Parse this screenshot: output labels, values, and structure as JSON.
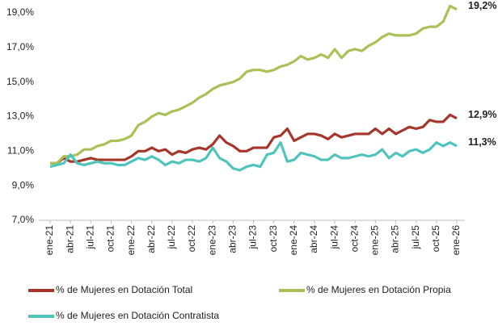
{
  "chart_data": {
    "type": "line",
    "categories": [
      "ene-21",
      null,
      null,
      "abr-21",
      null,
      null,
      "jul-21",
      null,
      null,
      "oct-21",
      null,
      null,
      "ene-22",
      null,
      null,
      "abr-22",
      null,
      null,
      "jul-22",
      null,
      null,
      "oct-22",
      null,
      null,
      "ene-23",
      null,
      null,
      "abr-23",
      null,
      null,
      "jul-23",
      null,
      null,
      "oct-23",
      null,
      null,
      "ene-24",
      null,
      null,
      "abr-24",
      null,
      null,
      "jul-24",
      null,
      null,
      "oct-24",
      null,
      null,
      "ene-25",
      null,
      null,
      "abr-25",
      null,
      null,
      "jul-25",
      null,
      null,
      "oct-25",
      null,
      null,
      "ene-26"
    ],
    "series": [
      {
        "name": "% de Mujeres en Dotación Total",
        "color": "#a5372a",
        "values": [
          10.3,
          10.3,
          10.6,
          10.4,
          10.4,
          10.5,
          10.6,
          10.5,
          10.5,
          10.5,
          10.5,
          10.5,
          10.7,
          11.0,
          11.0,
          11.2,
          11.0,
          11.1,
          10.8,
          11.0,
          10.9,
          11.1,
          11.2,
          11.1,
          11.4,
          11.9,
          11.5,
          11.3,
          11.0,
          11.0,
          11.2,
          11.2,
          11.2,
          11.8,
          11.9,
          12.3,
          11.6,
          11.8,
          12.0,
          12.0,
          11.9,
          11.7,
          12.0,
          11.8,
          11.9,
          12.0,
          12.0,
          12.0,
          12.3,
          12.0,
          12.3,
          12.0,
          12.2,
          12.4,
          12.3,
          12.4,
          12.8,
          12.7,
          12.7,
          13.1,
          12.9
        ],
        "value_labels": [
          null,
          null,
          null,
          null,
          null,
          null,
          null,
          null,
          null,
          null,
          null,
          null,
          null,
          null,
          null,
          null,
          null,
          null,
          null,
          null,
          null,
          null,
          null,
          null,
          null,
          null,
          null,
          null,
          null,
          null,
          null,
          null,
          null,
          null,
          null,
          null,
          null,
          null,
          null,
          null,
          null,
          null,
          null,
          null,
          null,
          null,
          null,
          null,
          null,
          null,
          null,
          null,
          null,
          null,
          null,
          null,
          null,
          null,
          null,
          null,
          "12,9%"
        ]
      },
      {
        "name": "% de Mujeres en Dotación Propia",
        "color": "#a9c157",
        "values": [
          10.3,
          10.3,
          10.7,
          10.7,
          10.8,
          11.1,
          11.1,
          11.3,
          11.4,
          11.6,
          11.6,
          11.7,
          11.9,
          12.5,
          12.7,
          13.0,
          13.2,
          13.1,
          13.3,
          13.4,
          13.6,
          13.8,
          14.1,
          14.3,
          14.6,
          14.8,
          14.9,
          15.0,
          15.2,
          15.6,
          15.7,
          15.7,
          15.6,
          15.7,
          15.9,
          16.0,
          16.2,
          16.5,
          16.3,
          16.4,
          16.6,
          16.4,
          16.9,
          16.4,
          16.8,
          16.9,
          16.8,
          17.1,
          17.3,
          17.6,
          17.8,
          17.7,
          17.7,
          17.7,
          17.8,
          18.1,
          18.2,
          18.2,
          18.5,
          19.4,
          19.2
        ],
        "value_labels": [
          null,
          null,
          null,
          null,
          null,
          null,
          null,
          null,
          null,
          null,
          null,
          null,
          null,
          null,
          null,
          null,
          null,
          null,
          null,
          null,
          null,
          null,
          null,
          null,
          null,
          null,
          null,
          null,
          null,
          null,
          null,
          null,
          null,
          null,
          null,
          null,
          null,
          null,
          null,
          null,
          null,
          null,
          null,
          null,
          null,
          null,
          null,
          null,
          null,
          null,
          null,
          null,
          null,
          null,
          null,
          null,
          null,
          null,
          null,
          null,
          "19,2%"
        ]
      },
      {
        "name": "% de Mujeres en Dotación Contratista",
        "color": "#4fc4bd",
        "values": [
          10.1,
          10.2,
          10.3,
          10.8,
          10.3,
          10.2,
          10.3,
          10.4,
          10.3,
          10.3,
          10.2,
          10.2,
          10.4,
          10.6,
          10.5,
          10.7,
          10.5,
          10.2,
          10.4,
          10.3,
          10.5,
          10.5,
          10.4,
          10.6,
          11.2,
          10.6,
          10.4,
          10.0,
          9.9,
          10.1,
          10.2,
          10.1,
          10.8,
          10.9,
          11.5,
          10.4,
          10.5,
          10.9,
          10.8,
          10.7,
          10.5,
          10.5,
          10.8,
          10.6,
          10.6,
          10.7,
          10.8,
          10.7,
          10.8,
          11.1,
          10.6,
          10.9,
          10.7,
          11.0,
          11.1,
          10.9,
          11.1,
          11.5,
          11.3,
          11.5,
          11.3
        ],
        "value_labels": [
          null,
          null,
          null,
          null,
          null,
          null,
          null,
          null,
          null,
          null,
          null,
          null,
          null,
          null,
          null,
          null,
          null,
          null,
          null,
          null,
          null,
          null,
          null,
          null,
          null,
          null,
          null,
          null,
          null,
          null,
          null,
          null,
          null,
          null,
          null,
          null,
          null,
          null,
          null,
          null,
          null,
          null,
          null,
          null,
          null,
          null,
          null,
          null,
          null,
          null,
          null,
          null,
          null,
          null,
          null,
          null,
          null,
          null,
          null,
          null,
          "11,3%"
        ]
      }
    ],
    "ylim": [
      7,
      19
    ],
    "yticks": [
      {
        "value": 7,
        "label": "7,0%"
      },
      {
        "value": 9,
        "label": "9,0%"
      },
      {
        "value": 11,
        "label": "11,0%"
      },
      {
        "value": 13,
        "label": "13,0%"
      },
      {
        "value": 15,
        "label": "15,0%"
      },
      {
        "value": 17,
        "label": "17,0%"
      },
      {
        "value": 19,
        "label": "19,0%"
      }
    ],
    "grid": false
  }
}
